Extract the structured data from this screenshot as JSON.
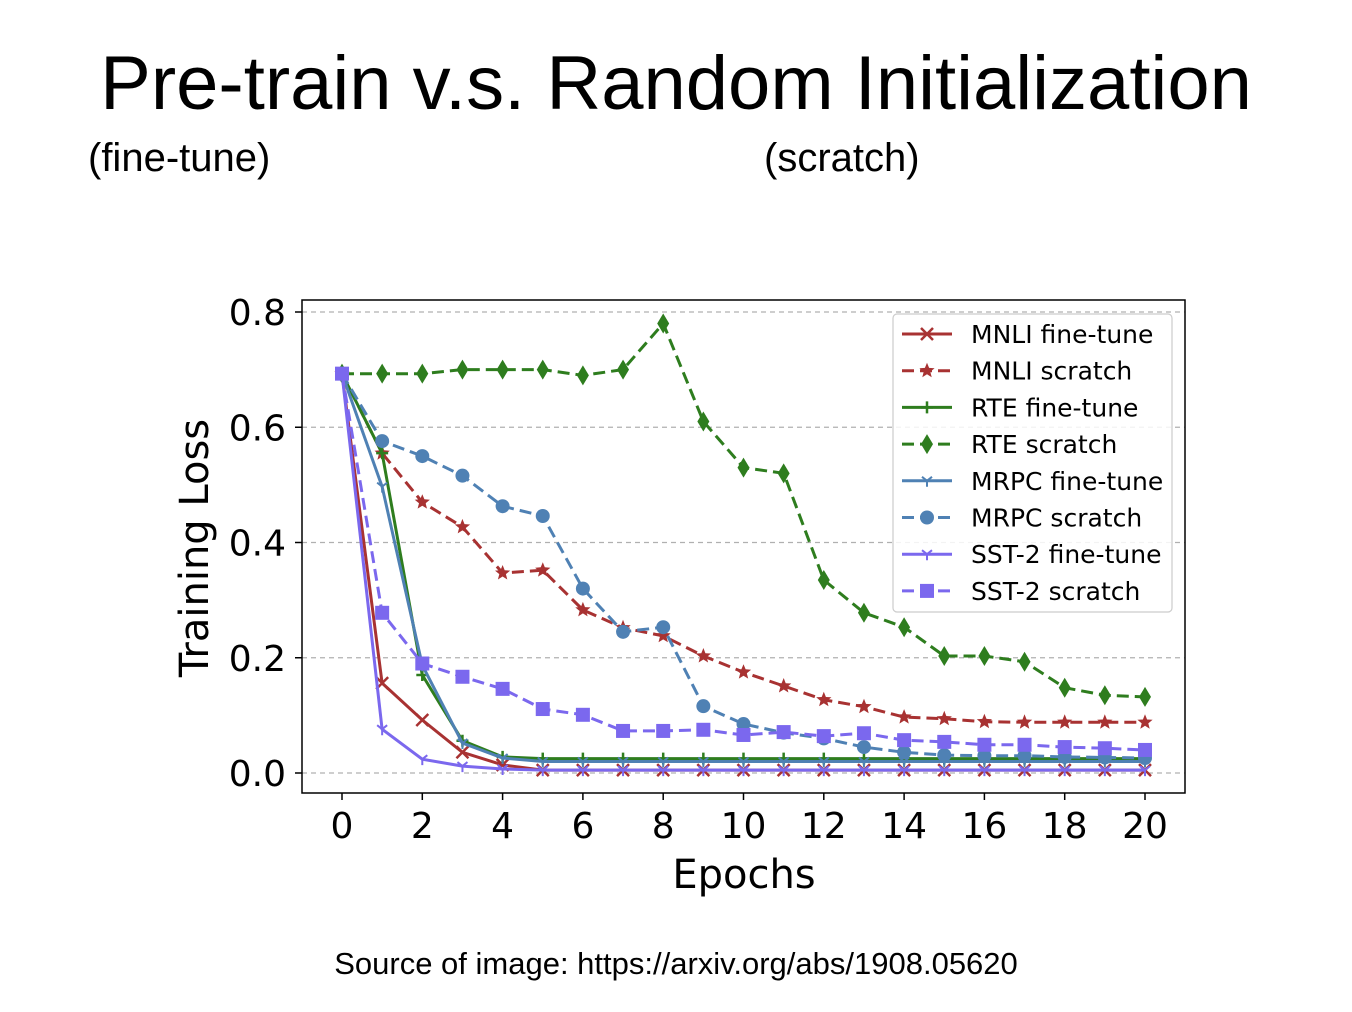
{
  "slide": {
    "title": "Pre-train v.s. Random Initialization",
    "subtitle_left": "(fine-tune)",
    "subtitle_right": "(scratch)",
    "source": "Source of image: https://arxiv.org/abs/1908.05620"
  },
  "chart_data": {
    "type": "line",
    "title": "",
    "xlabel": "Epochs",
    "ylabel": "Training Loss",
    "xlim": [
      0,
      20
    ],
    "ylim": [
      0,
      0.8
    ],
    "xticks": [
      "0",
      "2",
      "4",
      "6",
      "8",
      "10",
      "12",
      "14",
      "16",
      "18",
      "20"
    ],
    "yticks": [
      "0.0",
      "0.2",
      "0.4",
      "0.6",
      "0.8"
    ],
    "grid": "horizontal dashed",
    "legend_position": "top-right",
    "x": [
      0,
      1,
      2,
      3,
      4,
      5,
      6,
      7,
      8,
      9,
      10,
      11,
      12,
      13,
      14,
      15,
      16,
      17,
      18,
      19,
      20
    ],
    "series": [
      {
        "name": "MNLI fine-tune",
        "color": "#a83232",
        "dash": false,
        "marker": "x",
        "values": [
          0.693,
          0.156,
          0.092,
          0.036,
          0.014,
          0.005,
          0.005,
          0.005,
          0.005,
          0.005,
          0.005,
          0.005,
          0.005,
          0.005,
          0.005,
          0.005,
          0.005,
          0.005,
          0.005,
          0.005,
          0.005
        ]
      },
      {
        "name": "MNLI scratch",
        "color": "#a83232",
        "dash": true,
        "marker": "star",
        "values": [
          0.693,
          0.555,
          0.47,
          0.427,
          0.347,
          0.352,
          0.283,
          0.252,
          0.238,
          0.203,
          0.175,
          0.151,
          0.127,
          0.115,
          0.097,
          0.094,
          0.089,
          0.088,
          0.088,
          0.088,
          0.088
        ]
      },
      {
        "name": "RTE fine-tune",
        "color": "#2e7d1e",
        "dash": false,
        "marker": "plus",
        "values": [
          0.693,
          0.555,
          0.17,
          0.056,
          0.028,
          0.025,
          0.025,
          0.025,
          0.025,
          0.025,
          0.025,
          0.025,
          0.025,
          0.025,
          0.025,
          0.025,
          0.025,
          0.025,
          0.025,
          0.025,
          0.025
        ]
      },
      {
        "name": "RTE scratch",
        "color": "#2e7d1e",
        "dash": true,
        "marker": "diamond",
        "values": [
          0.693,
          0.693,
          0.693,
          0.7,
          0.7,
          0.7,
          0.69,
          0.7,
          0.78,
          0.61,
          0.53,
          0.52,
          0.335,
          0.278,
          0.253,
          0.203,
          0.203,
          0.193,
          0.148,
          0.135,
          0.132
        ]
      },
      {
        "name": "MRPC fine-tune",
        "color": "#4f81b4",
        "dash": false,
        "marker": "tri",
        "values": [
          0.693,
          0.497,
          0.187,
          0.052,
          0.026,
          0.02,
          0.02,
          0.02,
          0.02,
          0.02,
          0.02,
          0.02,
          0.02,
          0.02,
          0.02,
          0.02,
          0.02,
          0.02,
          0.02,
          0.02,
          0.02
        ]
      },
      {
        "name": "MRPC scratch",
        "color": "#4f81b4",
        "dash": true,
        "marker": "circle",
        "values": [
          0.693,
          0.576,
          0.55,
          0.516,
          0.463,
          0.446,
          0.32,
          0.245,
          0.253,
          0.116,
          0.085,
          0.07,
          0.06,
          0.045,
          0.036,
          0.031,
          0.03,
          0.03,
          0.028,
          0.027,
          0.026
        ]
      },
      {
        "name": "SST-2 fine-tune",
        "color": "#7b68ee",
        "dash": false,
        "marker": "tri",
        "values": [
          0.693,
          0.076,
          0.024,
          0.012,
          0.007,
          0.005,
          0.005,
          0.005,
          0.005,
          0.005,
          0.005,
          0.005,
          0.005,
          0.005,
          0.005,
          0.005,
          0.005,
          0.005,
          0.005,
          0.005,
          0.005
        ]
      },
      {
        "name": "SST-2 scratch",
        "color": "#7b68ee",
        "dash": true,
        "marker": "square",
        "values": [
          0.693,
          0.278,
          0.19,
          0.167,
          0.146,
          0.111,
          0.101,
          0.073,
          0.073,
          0.075,
          0.066,
          0.071,
          0.064,
          0.069,
          0.057,
          0.054,
          0.049,
          0.049,
          0.045,
          0.043,
          0.04
        ]
      }
    ]
  }
}
